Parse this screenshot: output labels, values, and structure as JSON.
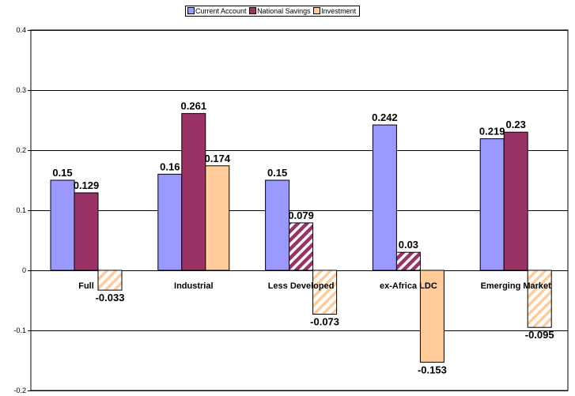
{
  "chart_data": {
    "type": "bar",
    "categories": [
      "Full",
      "Industrial",
      "Less Developed",
      "ex-Africa LDC",
      "Emerging Market"
    ],
    "series": [
      {
        "name": "Current Account",
        "values": [
          0.15,
          0.16,
          0.15,
          0.242,
          0.219
        ],
        "color": "#9999ff"
      },
      {
        "name": "National Savings",
        "values": [
          0.129,
          0.261,
          0.079,
          0.03,
          0.23
        ],
        "color": "#993366"
      },
      {
        "name": "Investment",
        "values": [
          -0.033,
          0.174,
          -0.073,
          -0.153,
          -0.095
        ],
        "color": "#ffcc99"
      }
    ],
    "data_labels": [
      [
        "0.15",
        "0.16",
        "0.15",
        "0.242",
        "0.219"
      ],
      [
        "0.129",
        "0.261",
        "0.079",
        "0.03",
        "0.23"
      ],
      [
        "-0.033",
        "0.174",
        "-0.073",
        "-0.153",
        "-0.095"
      ]
    ],
    "hatched": [
      [
        false,
        false,
        false,
        false,
        false
      ],
      [
        false,
        false,
        true,
        true,
        false
      ],
      [
        true,
        false,
        true,
        false,
        true
      ]
    ],
    "ylim": [
      -0.2,
      0.4
    ],
    "yticks": [
      "-0.2",
      "-0.1",
      "0",
      "0.1",
      "0.2",
      "0.3",
      "0.4"
    ],
    "grid": true,
    "legend_position": "top-center"
  }
}
